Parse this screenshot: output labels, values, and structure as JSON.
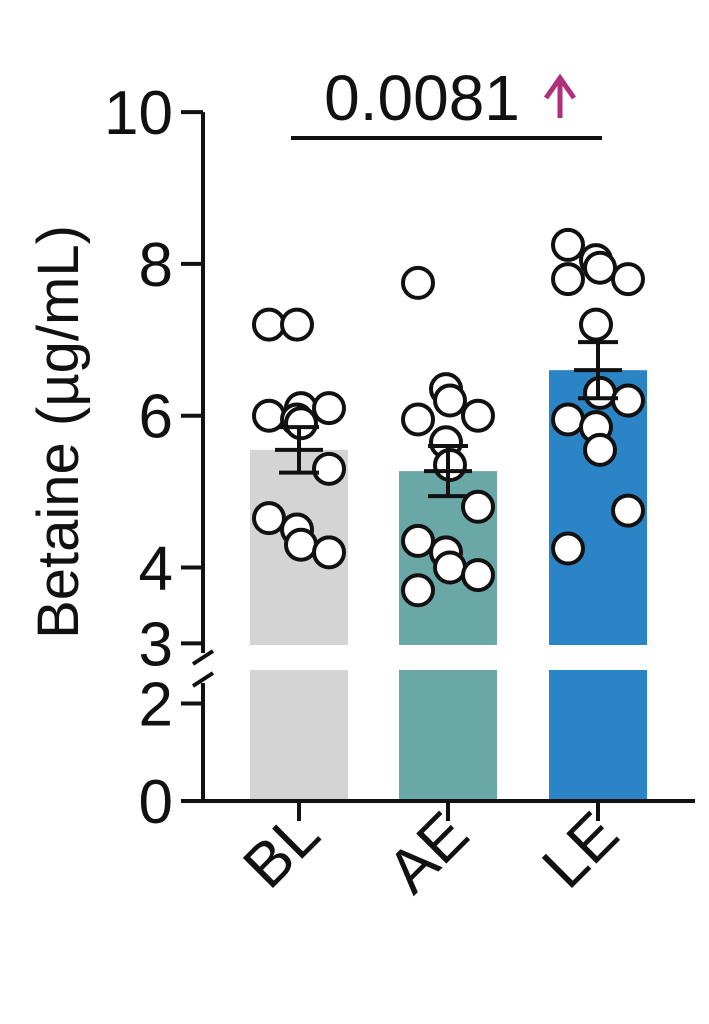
{
  "chart_data": {
    "type": "bar",
    "ylabel": "Betaine (µg/mL)",
    "categories": [
      "BL",
      "AE",
      "LE"
    ],
    "colors": [
      "#d4d4d4",
      "#6aa8a8",
      "#2a84c6"
    ],
    "ylim": [
      0,
      10
    ],
    "y_axis_break": [
      2,
      3
    ],
    "y_ticks_lower": [
      "0",
      "2"
    ],
    "y_ticks_upper": [
      "3",
      "4",
      "6",
      "8",
      "10"
    ],
    "means": [
      5.55,
      5.27,
      6.6
    ],
    "sem": [
      0.3,
      0.33,
      0.37
    ],
    "points": [
      [
        7.2,
        7.2,
        6.1,
        6.1,
        6.0,
        5.95,
        5.9,
        5.3,
        4.65,
        4.5,
        4.3,
        4.2
      ],
      [
        7.75,
        6.35,
        6.2,
        6.0,
        5.95,
        5.65,
        5.35,
        4.8,
        4.35,
        4.2,
        4.0,
        3.9,
        3.7
      ],
      [
        8.25,
        8.05,
        7.95,
        7.8,
        7.8,
        7.2,
        6.3,
        6.2,
        5.95,
        5.85,
        5.55,
        4.75,
        4.25
      ]
    ],
    "annotation": {
      "text": "0.0081",
      "from": "BL",
      "to": "LE",
      "arrow": "up",
      "arrow_color": "#b0307a"
    }
  }
}
